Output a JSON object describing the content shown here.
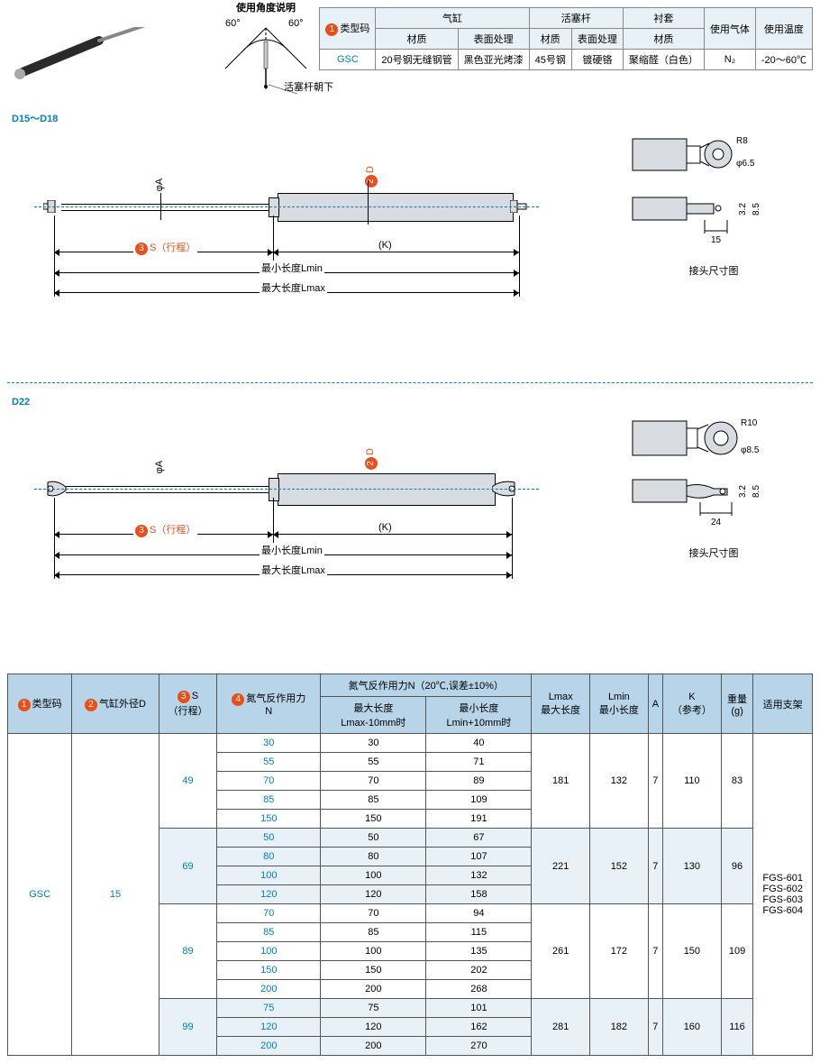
{
  "topTable": {
    "headers": {
      "typeCode": "类型码",
      "cylinder": "气缸",
      "piston": "活塞杆",
      "bushing": "衬套",
      "gas": "使用气体",
      "temp": "使用温度",
      "material": "材质",
      "surface": "表面处理"
    },
    "row": {
      "code": "GSC",
      "cylMat": "20号钢无缝钢管",
      "cylSurf": "黑色亚光烤漆",
      "pisMat": "45号钢",
      "pisSurf": "镀硬铬",
      "bushMat": "聚缩醛（白色）",
      "gas": "N₂",
      "temp": "-20～60℃"
    }
  },
  "angleDiag": {
    "title": "使用角度说明",
    "angle": "60°",
    "note": "活塞杆朝下"
  },
  "sections": {
    "s1": "D15～D18",
    "s2": "D22"
  },
  "diagLabels": {
    "phiA": "φA",
    "phiD": "φD",
    "s": "S（行程）",
    "sNum": "3",
    "dNum": "2",
    "k": "(K)",
    "lmin": "最小长度Lmin",
    "lmax": "最大长度Lmax",
    "jointTitle": "接头尺寸图"
  },
  "joint1": {
    "r": "R8",
    "d": "φ6.5",
    "w": "15",
    "h1": "3.2",
    "h2": "8.5"
  },
  "joint2": {
    "r": "R10",
    "d": "φ8.5",
    "w": "24",
    "h1": "3.2",
    "h2": "8.5"
  },
  "mainTable": {
    "headers": {
      "typeCode": "类型码",
      "diameter": "气缸外径D",
      "stroke": "S\n（行程）",
      "force": "氮气反作用力\nN",
      "forceN": "氮气反作用力N（20℃,误差±10%）",
      "maxLen": "最大长度\nLmax-10mm时",
      "minLen": "最小长度\nLmin+10mm时",
      "lmax": "Lmax\n最大长度",
      "lmin": "Lmin\n最小长度",
      "a": "A",
      "k": "K\n（参考）",
      "weight": "重量\n(g)",
      "bracket": "适用支架"
    },
    "nums": {
      "n1": "1",
      "n2": "2",
      "n3": "3",
      "n4": "4"
    },
    "code": "GSC",
    "diameter": "15",
    "brackets": [
      "FGS-601",
      "FGS-602",
      "FGS-603",
      "FGS-604"
    ],
    "groups": [
      {
        "stroke": "49",
        "lmax": "181",
        "lmin": "132",
        "a": "7",
        "k": "110",
        "wt": "83",
        "rows": [
          [
            "30",
            "30",
            "40"
          ],
          [
            "55",
            "55",
            "71"
          ],
          [
            "70",
            "70",
            "89"
          ],
          [
            "85",
            "85",
            "109"
          ],
          [
            "150",
            "150",
            "191"
          ]
        ]
      },
      {
        "stroke": "69",
        "lmax": "221",
        "lmin": "152",
        "a": "7",
        "k": "130",
        "wt": "96",
        "rows": [
          [
            "50",
            "50",
            "67"
          ],
          [
            "80",
            "80",
            "107"
          ],
          [
            "100",
            "100",
            "132"
          ],
          [
            "120",
            "120",
            "158"
          ]
        ]
      },
      {
        "stroke": "89",
        "lmax": "261",
        "lmin": "172",
        "a": "7",
        "k": "150",
        "wt": "109",
        "rows": [
          [
            "70",
            "70",
            "94"
          ],
          [
            "85",
            "85",
            "115"
          ],
          [
            "100",
            "100",
            "135"
          ],
          [
            "150",
            "150",
            "202"
          ],
          [
            "200",
            "200",
            "268"
          ]
        ]
      },
      {
        "stroke": "99",
        "lmax": "281",
        "lmin": "182",
        "a": "7",
        "k": "160",
        "wt": "116",
        "rows": [
          [
            "75",
            "75",
            "101"
          ],
          [
            "120",
            "120",
            "162"
          ],
          [
            "200",
            "200",
            "270"
          ]
        ]
      }
    ]
  },
  "colors": {
    "accent": "#0080c0",
    "orange": "#e94e1b",
    "headerBg": "#b8d4e8",
    "altBg": "#e8f0f8"
  }
}
